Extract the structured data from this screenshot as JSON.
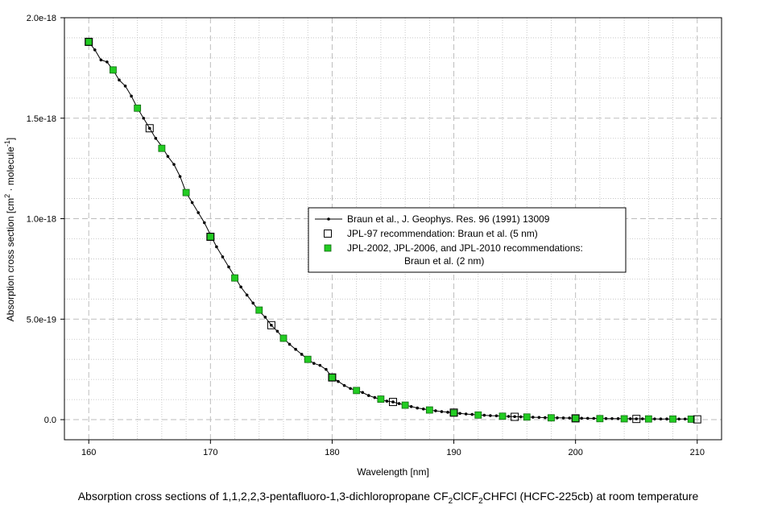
{
  "chart_data": {
    "type": "line",
    "title": "",
    "caption": {
      "prefix": "Absorption cross sections of 1,1,2,2,3-pentafluoro-1,3-dichloropropane CF",
      "sub1": "2",
      "mid1": "ClCF",
      "sub2": "2",
      "suffix": "CHFCl (HCFC-225cb) at room temperature"
    },
    "xlabel": "Wavelength [nm]",
    "ylabel": {
      "prefix": "Absorption cross section [cm",
      "sup1": "2",
      "middle": " · molecule",
      "sup2": "-1",
      "suffix": "]"
    },
    "xlim": [
      158,
      212
    ],
    "ylim": [
      -1e-19,
      2e-18
    ],
    "x_ticks": [
      160,
      170,
      180,
      190,
      200,
      210
    ],
    "y_ticks": [
      0,
      5e-19,
      1e-18,
      1.5e-18,
      2e-18
    ],
    "x_tick_labels": [
      "160",
      "170",
      "180",
      "190",
      "200",
      "210"
    ],
    "y_tick_labels": [
      "0.0",
      "5.0e-19",
      "1.0e-18",
      "1.5e-18",
      "2.0e-18"
    ],
    "grid": true,
    "legend_position": "center-right",
    "series": [
      {
        "name": "Braun et al., J. Geophys. Res. 96 (1991) 13009",
        "style": "line-dots",
        "color": "#000000",
        "x": [
          160,
          160.5,
          161,
          161.5,
          162,
          162.5,
          163,
          163.5,
          164,
          164.5,
          165,
          165.5,
          166,
          166.5,
          167,
          167.5,
          168,
          168.5,
          169,
          169.5,
          170,
          170.5,
          171,
          171.5,
          172,
          172.5,
          173,
          173.5,
          174,
          174.5,
          175,
          175.5,
          176,
          176.5,
          177,
          177.5,
          178,
          178.5,
          179,
          179.5,
          180,
          180.5,
          181,
          181.5,
          182,
          182.5,
          183,
          183.5,
          184,
          184.5,
          185,
          185.5,
          186,
          186.5,
          187,
          187.5,
          188,
          188.5,
          189,
          189.5,
          190,
          190.5,
          191,
          191.5,
          192,
          192.5,
          193,
          193.5,
          194,
          194.5,
          195,
          195.5,
          196,
          196.5,
          197,
          197.5,
          198,
          198.5,
          199,
          199.5,
          200,
          200.5,
          201,
          201.5,
          202,
          202.5,
          203,
          203.5,
          204,
          204.5,
          205,
          205.5,
          206,
          206.5,
          207,
          207.5,
          208,
          208.5,
          209,
          209.5
        ],
        "y": [
          1.88e-18,
          1.84e-18,
          1.79e-18,
          1.78e-18,
          1.74e-18,
          1.69e-18,
          1.66e-18,
          1.61e-18,
          1.55e-18,
          1.5e-18,
          1.45e-18,
          1.4e-18,
          1.36e-18,
          1.31e-18,
          1.27e-18,
          1.21e-18,
          1.13e-18,
          1.08e-18,
          1.03e-18,
          9.8e-19,
          9.2e-19,
          8.6e-19,
          8.1e-19,
          7.6e-19,
          7.1e-19,
          6.6e-19,
          6.2e-19,
          5.8e-19,
          5.4e-19,
          5.1e-19,
          4.7e-19,
          4.4e-19,
          4.05e-19,
          3.75e-19,
          3.5e-19,
          3.25e-19,
          3e-19,
          2.8e-19,
          2.7e-19,
          2.5e-19,
          2.1e-19,
          1.9e-19,
          1.7e-19,
          1.55e-19,
          1.45e-19,
          1.35e-19,
          1.2e-19,
          1.1e-19,
          1e-19,
          9.2e-20,
          8.8e-20,
          8e-20,
          7.2e-20,
          6.5e-20,
          5.8e-20,
          5.3e-20,
          4.8e-20,
          4.4e-20,
          4e-20,
          3.7e-20,
          3.4e-20,
          3.1e-20,
          2.8e-20,
          2.6e-20,
          2.4e-20,
          2.2e-20,
          2e-20,
          1.9e-20,
          1.7e-20,
          1.6e-20,
          1.5e-20,
          1.4e-20,
          1.3e-20,
          1.2e-20,
          1.1e-20,
          1e-20,
          9.5e-21,
          9e-21,
          8.5e-21,
          8e-21,
          7.5e-21,
          7e-21,
          6.6e-21,
          6.2e-21,
          5.8e-21,
          5.5e-21,
          5.2e-21,
          4.9e-21,
          4.6e-21,
          4.4e-21,
          4.2e-21,
          4e-21,
          3.8e-21,
          3.6e-21,
          3.4e-21,
          3.3e-21,
          3.2e-21,
          3.1e-21,
          3e-21,
          2.9e-21
        ]
      },
      {
        "name": "JPL-97 recommendation: Braun et al. (5 nm)",
        "style": "open-square",
        "color": "#000000",
        "x": [
          160,
          165,
          170,
          175,
          180,
          185,
          190,
          195,
          200,
          205,
          210
        ],
        "y": [
          1.88e-18,
          1.45e-18,
          9.1e-19,
          4.7e-19,
          2.1e-19,
          8.8e-20,
          3.5e-20,
          1.4e-20,
          6.5e-21,
          3.5e-21,
          1.5e-21
        ]
      },
      {
        "name": "JPL-2002, JPL-2006, and JPL-2010 recommendations:",
        "name_line2": "Braun et al. (2 nm)",
        "style": "green-square",
        "color": "#22cc22",
        "x": [
          160,
          162,
          164,
          166,
          168,
          170,
          172,
          174,
          176,
          178,
          180,
          182,
          184,
          186,
          188,
          190,
          192,
          194,
          196,
          198,
          200,
          202,
          204,
          206,
          208,
          209.5
        ],
        "y": [
          1.88e-18,
          1.74e-18,
          1.55e-18,
          1.35e-18,
          1.13e-18,
          9.1e-19,
          7.05e-19,
          5.45e-19,
          4.05e-19,
          3e-19,
          2.1e-19,
          1.45e-19,
          1.02e-19,
          7.2e-20,
          4.8e-20,
          3.3e-20,
          2.3e-20,
          1.7e-20,
          1.3e-20,
          9e-21,
          6.5e-21,
          5e-21,
          4.2e-21,
          3.5e-21,
          3e-21,
          2.5e-21
        ]
      }
    ]
  }
}
